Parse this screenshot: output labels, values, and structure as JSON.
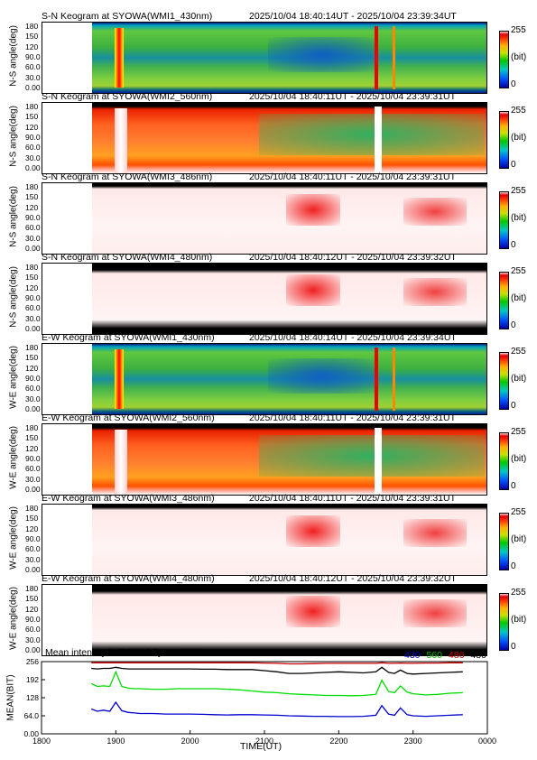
{
  "panels": [
    {
      "title": "S-N Keogram at SYOWA(WMI1_430nm)",
      "time": "2025/10/04 18:40:14UT - 2025/10/04 23:39:34UT",
      "ylabel": "N-S angle(deg)",
      "style": "green430"
    },
    {
      "title": "S-N Keogram at SYOWA(WMI2_560nm)",
      "time": "2025/10/04 18:40:11UT - 2025/10/04 23:39:31UT",
      "ylabel": "N-S angle(deg)",
      "style": "red560"
    },
    {
      "title": "S-N Keogram at SYOWA(WMI3_486nm)",
      "time": "2025/10/04 18:40:11UT - 2025/10/04 23:39:31UT",
      "ylabel": "N-S angle(deg)",
      "style": "pale486"
    },
    {
      "title": "S-N Keogram at SYOWA(WMI4_480nm)",
      "time": "2025/10/04 18:40:12UT - 2025/10/04 23:39:32UT",
      "ylabel": "N-S angle(deg)",
      "style": "pale480"
    },
    {
      "title": "E-W Keogram at SYOWA(WMI1_430nm)",
      "time": "2025/10/04 18:40:14UT - 2025/10/04 23:39:34UT",
      "ylabel": "W-E angle(deg)",
      "style": "green430"
    },
    {
      "title": "E-W Keogram at SYOWA(WMI2_560nm)",
      "time": "2025/10/04 18:40:11UT - 2025/10/04 23:39:31UT",
      "ylabel": "W-E angle(deg)",
      "style": "red560"
    },
    {
      "title": "E-W Keogram at SYOWA(WMI3_486nm)",
      "time": "2025/10/04 18:40:11UT - 2025/10/04 23:39:31UT",
      "ylabel": "W-E angle(deg)",
      "style": "pale486"
    },
    {
      "title": "E-W Keogram at SYOWA(WMI4_480nm)",
      "time": "2025/10/04 18:40:12UT - 2025/10/04 23:39:32UT",
      "ylabel": "W-E angle(deg)",
      "style": "pale480"
    }
  ],
  "keogram_yticks": [
    "180",
    "150",
    "120",
    "90.0",
    "60.0",
    "30.0",
    "0.00"
  ],
  "colorbar": {
    "max": "255",
    "unit": "(bit)",
    "min": "0"
  },
  "chart_data": {
    "type": "line",
    "title": "Mean intensity in FOV of Syowa WMI",
    "xlabel": "TIME(UT)",
    "ylabel": "MEAN(BIT)",
    "xticks": [
      "1800",
      "1900",
      "2000",
      "2100",
      "2200",
      "2300",
      "0000"
    ],
    "yticks": [
      "256",
      "192",
      "128",
      "64.0",
      "0.00"
    ],
    "xlim": [
      18.0,
      24.0
    ],
    "ylim": [
      0,
      256
    ],
    "x": [
      18.67,
      18.75,
      18.83,
      18.92,
      19.0,
      19.08,
      19.17,
      19.25,
      19.33,
      19.5,
      19.67,
      19.83,
      20.0,
      20.17,
      20.33,
      20.5,
      20.67,
      20.83,
      21.0,
      21.17,
      21.33,
      21.5,
      21.67,
      21.83,
      22.0,
      22.17,
      22.33,
      22.5,
      22.58,
      22.67,
      22.75,
      22.83,
      22.92,
      23.0,
      23.17,
      23.33,
      23.5,
      23.67
    ],
    "series": [
      {
        "name": "430",
        "color": "#0000cc",
        "values": [
          88,
          80,
          84,
          80,
          112,
          82,
          76,
          74,
          72,
          72,
          70,
          70,
          70,
          69,
          68,
          67,
          68,
          68,
          67,
          66,
          64,
          63,
          62,
          62,
          61,
          61,
          62,
          66,
          100,
          70,
          66,
          92,
          68,
          64,
          62,
          64,
          66,
          68
        ]
      },
      {
        "name": "560",
        "color": "#00dd00",
        "values": [
          178,
          168,
          170,
          168,
          220,
          168,
          162,
          160,
          160,
          158,
          158,
          160,
          160,
          160,
          160,
          158,
          156,
          152,
          148,
          146,
          142,
          140,
          138,
          136,
          136,
          135,
          136,
          140,
          190,
          150,
          146,
          170,
          148,
          142,
          138,
          140,
          144,
          146
        ]
      },
      {
        "name": "486",
        "color": "#cc0000",
        "values": [
          252,
          252,
          252,
          252,
          252,
          252,
          252,
          252,
          252,
          252,
          252,
          252,
          252,
          252,
          252,
          252,
          252,
          252,
          251,
          250,
          248,
          248,
          249,
          250,
          250,
          250,
          250,
          250,
          252,
          250,
          250,
          251,
          250,
          250,
          251,
          251,
          252,
          252
        ]
      },
      {
        "name": "480",
        "color": "#000000",
        "values": [
          232,
          230,
          232,
          232,
          236,
          232,
          230,
          230,
          230,
          230,
          230,
          230,
          230,
          229,
          229,
          228,
          228,
          228,
          224,
          220,
          214,
          214,
          216,
          218,
          220,
          218,
          216,
          220,
          236,
          218,
          214,
          226,
          214,
          212,
          214,
          216,
          218,
          220
        ]
      }
    ]
  }
}
